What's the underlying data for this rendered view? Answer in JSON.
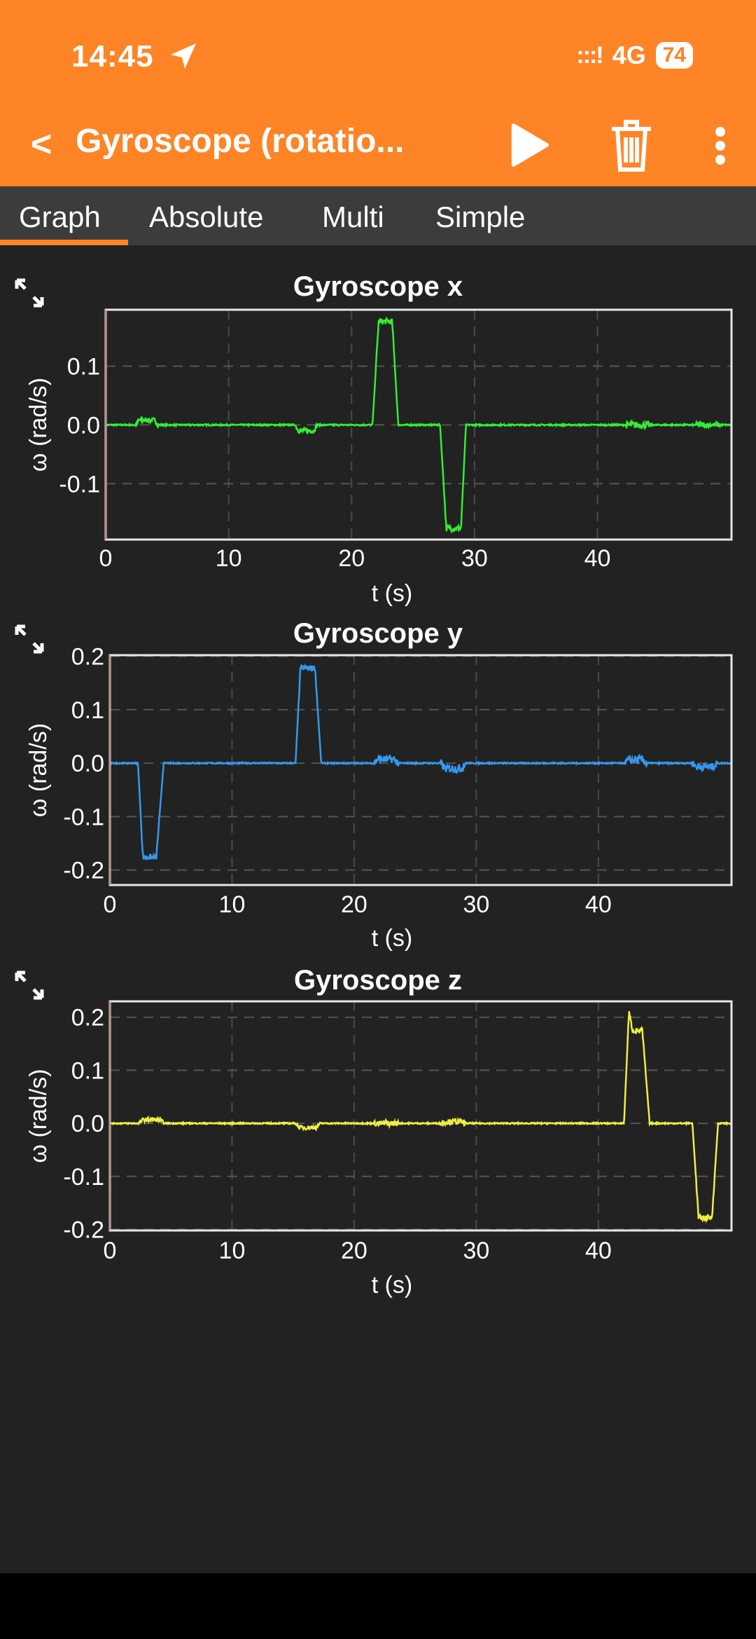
{
  "status_bar": {
    "time": "14:45",
    "network": "4G",
    "battery": "74",
    "signal": ":::!"
  },
  "header": {
    "back_label": "<",
    "title": "Gyroscope (rotatio...",
    "icons": [
      "back-chevron-icon",
      "play-icon",
      "trash-icon",
      "more-vertical-icon"
    ]
  },
  "tabs": [
    {
      "label": "Graph",
      "active": true
    },
    {
      "label": "Absolute"
    },
    {
      "label": "Multi"
    },
    {
      "label": "Simple"
    }
  ],
  "colors": {
    "accent": "#FF8426",
    "x": "#33EE33",
    "y": "#3399EE",
    "z": "#EEEE44"
  },
  "chart_data": [
    {
      "type": "line",
      "title": "Gyroscope x",
      "xlabel": "t (s)",
      "ylabel": "ω (rad/s)",
      "xlim": [
        0,
        50.9
      ],
      "ylim": [
        -0.195,
        0.196
      ],
      "xticks": [
        0,
        10,
        20,
        30,
        40
      ],
      "yticks": [
        -0.1,
        0.0,
        0.1
      ],
      "ytick_labels": [
        "-0.1",
        "0.0",
        "0.1"
      ],
      "grid": true,
      "color_key": "x",
      "points": [
        [
          0,
          0
        ],
        [
          21.7,
          0
        ],
        [
          22.2,
          0.176
        ],
        [
          23.3,
          0.176
        ],
        [
          23.8,
          0
        ],
        [
          27.2,
          0
        ],
        [
          27.7,
          -0.176
        ],
        [
          28.9,
          -0.176
        ],
        [
          29.3,
          0
        ],
        [
          50.9,
          0
        ]
      ],
      "bursts": [
        [
          2.4,
          4.3,
          0.008,
          0.004
        ],
        [
          15.4,
          17.2,
          -0.01,
          0.004
        ],
        [
          42.3,
          44.3,
          0,
          0.006
        ],
        [
          48,
          50,
          0,
          0.004
        ]
      ]
    },
    {
      "type": "line",
      "title": "Gyroscope y",
      "xlabel": "t (s)",
      "ylabel": "ω (rad/s)",
      "xlim": [
        0,
        50.9
      ],
      "ylim": [
        -0.228,
        0.202
      ],
      "xticks": [
        0,
        10,
        20,
        30,
        40
      ],
      "yticks": [
        -0.2,
        -0.1,
        0.0,
        0.1,
        0.2
      ],
      "ytick_labels": [
        "-0.2",
        "-0.1",
        "0.0",
        "0.1",
        "0.2"
      ],
      "grid": true,
      "color_key": "y",
      "points": [
        [
          0,
          0
        ],
        [
          2.3,
          0
        ],
        [
          2.7,
          -0.176
        ],
        [
          3.8,
          -0.176
        ],
        [
          4.4,
          0
        ],
        [
          15.2,
          0
        ],
        [
          15.6,
          0.178
        ],
        [
          16.8,
          0.178
        ],
        [
          17.3,
          0
        ],
        [
          50.9,
          0
        ]
      ],
      "bursts": [
        [
          21.6,
          23.6,
          0.007,
          0.007
        ],
        [
          27.1,
          29.1,
          -0.01,
          0.008
        ],
        [
          42.2,
          44,
          0.006,
          0.008
        ],
        [
          47.7,
          49.7,
          -0.007,
          0.007
        ]
      ]
    },
    {
      "type": "line",
      "title": "Gyroscope z",
      "xlabel": "t (s)",
      "ylabel": "ω (rad/s)",
      "xlim": [
        0,
        50.9
      ],
      "ylim": [
        -0.202,
        0.23
      ],
      "xticks": [
        0,
        10,
        20,
        30,
        40
      ],
      "yticks": [
        -0.2,
        -0.1,
        0.0,
        0.1,
        0.2
      ],
      "ytick_labels": [
        "-0.2",
        "-0.1",
        "0.0",
        "0.1",
        "0.2"
      ],
      "grid": true,
      "color_key": "z",
      "points": [
        [
          0,
          0
        ],
        [
          42.1,
          0
        ],
        [
          42.5,
          0.21
        ],
        [
          42.8,
          0.175
        ],
        [
          43.6,
          0.175
        ],
        [
          44.2,
          0
        ],
        [
          47.7,
          0
        ],
        [
          48.2,
          -0.178
        ],
        [
          49.3,
          -0.178
        ],
        [
          49.8,
          0
        ],
        [
          50.9,
          0
        ]
      ],
      "bursts": [
        [
          2.4,
          4.4,
          0.007,
          0.004
        ],
        [
          15.2,
          17.2,
          -0.008,
          0.004
        ],
        [
          21.6,
          23.6,
          0,
          0.005
        ],
        [
          27.1,
          29.1,
          0.003,
          0.005
        ]
      ]
    }
  ]
}
